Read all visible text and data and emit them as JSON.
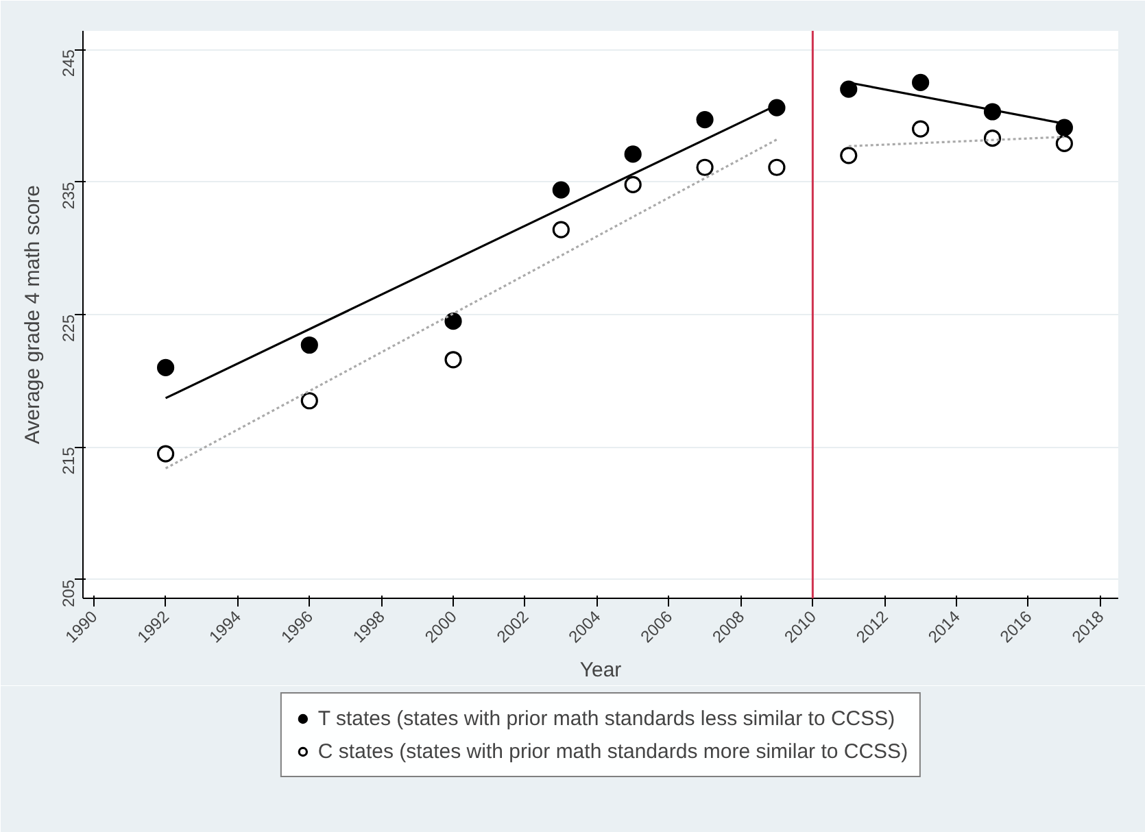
{
  "chart_data": {
    "type": "scatter",
    "xlabel": "Year",
    "ylabel": "Average grade 4 math score",
    "xlim": [
      1989.7,
      2018.5
    ],
    "ylim": [
      203.6,
      246.4
    ],
    "xticks": [
      1990,
      1992,
      1994,
      1996,
      1998,
      2000,
      2002,
      2004,
      2006,
      2008,
      2010,
      2012,
      2014,
      2016,
      2018
    ],
    "yticks": [
      205,
      215,
      225,
      235,
      245
    ],
    "grid": "y",
    "legend": "bottom",
    "marker": "circle",
    "series": [
      {
        "name": "T states (states with prior math standards less similar to CCSS)",
        "color": "#000000",
        "x": [
          1992,
          1996,
          2000,
          2003,
          2005,
          2007,
          2009,
          2011,
          2013,
          2015,
          2017
        ],
        "values": [
          221.0,
          222.7,
          224.5,
          234.4,
          237.1,
          239.7,
          240.6,
          242.0,
          242.5,
          240.3,
          239.1
        ]
      },
      {
        "name": "C states (states with prior math standards more similar to CCSS)",
        "color": "#ffffff",
        "x": [
          1992,
          1996,
          2000,
          2003,
          2005,
          2007,
          2009,
          2011,
          2013,
          2015,
          2017
        ],
        "values": [
          214.5,
          218.5,
          221.6,
          231.4,
          234.8,
          236.1,
          236.1,
          237.0,
          239.0,
          238.3,
          237.9
        ]
      },
      {
        "type": "line",
        "marker": "none",
        "color": "#000000",
        "line_style": "solid",
        "x": [
          1992,
          2009
        ],
        "values": [
          218.7,
          240.8
        ]
      },
      {
        "type": "line",
        "marker": "none",
        "color": "#aaaaaa",
        "line_style": "dotted",
        "x": [
          1992,
          2009
        ],
        "values": [
          213.4,
          238.2
        ]
      },
      {
        "type": "line",
        "marker": "none",
        "color": "#000000",
        "line_style": "solid",
        "x": [
          2011,
          2017
        ],
        "values": [
          242.5,
          239.4
        ]
      },
      {
        "type": "line",
        "marker": "none",
        "color": "#aaaaaa",
        "line_style": "dotted",
        "x": [
          2011,
          2017
        ],
        "values": [
          237.7,
          238.4
        ]
      }
    ],
    "ref_lines": [
      {
        "axis": "x",
        "value": 2010,
        "color": "#d0314f"
      }
    ]
  }
}
